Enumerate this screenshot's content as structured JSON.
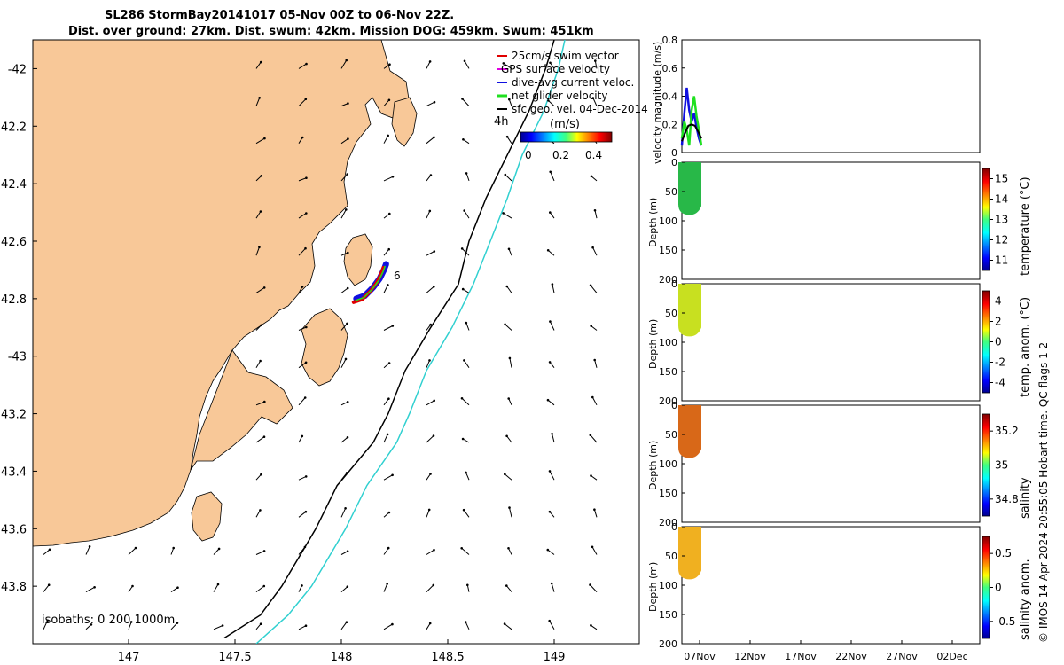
{
  "title": {
    "line1": "SL286 StormBay20141017 05-Nov 00Z to 06-Nov 22Z.",
    "line2": "Dist. over ground: 27km. Dist. swum: 42km. Mission DOG: 459km. Swum: 451km"
  },
  "colors": {
    "land": "#f8c898",
    "swim_vector": "#e00000",
    "gps_velocity": "#e000e0",
    "dive_avg": "#1010e0",
    "net_glider": "#20e020",
    "sfc_geo": "#000000",
    "isobath_200": "#000000",
    "isobath_1000": "#30d0d0"
  },
  "chart_data": [
    {
      "id": "map",
      "type": "scatter",
      "xlim": [
        146.55,
        149.4
      ],
      "ylim": [
        -44.0,
        -41.9
      ],
      "xticks": [
        147,
        147.5,
        148,
        148.5,
        149
      ],
      "xtick_labels": [
        "147",
        "147.5",
        "148",
        "148.5",
        "149"
      ],
      "yticks": [
        -42,
        -42.2,
        -42.4,
        -42.6,
        -42.8,
        -43,
        -43.2,
        -43.4,
        -43.6,
        -43.8
      ],
      "ytick_labels": [
        "-42",
        "42.2",
        "42.4",
        "42.6",
        "42.8",
        "-43",
        "43.2",
        "43.4",
        "43.6",
        "43.8"
      ],
      "legend": [
        {
          "label": "25cm/s swim vector",
          "color": "#e00000"
        },
        {
          "label": "GPS surface velocity",
          "color": "#e000e0"
        },
        {
          "label": "dive-avg current veloc.",
          "color": "#1010e0"
        },
        {
          "label": "net glider velocity",
          "color": "#20e020"
        },
        {
          "label": "sfc geo. vel. 04-Dec-2014",
          "color": "#000000"
        }
      ],
      "legend_position": "top-right",
      "colorbar_label": "(m/s)",
      "colorbar_ticks": [
        "0",
        "0.2",
        "0.4"
      ],
      "isobaths_label": "isobaths: 0   200  1000m",
      "annotations": [
        {
          "text": "4h",
          "lon": 148.78,
          "lat": -42.15
        },
        {
          "text": "6",
          "lon": 148.27,
          "lat": -42.73
        }
      ],
      "glider_track": [
        [
          148.07,
          -42.8
        ],
        [
          148.11,
          -42.79
        ],
        [
          148.15,
          -42.76
        ],
        [
          148.18,
          -42.73
        ],
        [
          148.2,
          -42.7
        ],
        [
          148.21,
          -42.68
        ]
      ],
      "isobath_200m": [
        [
          149.0,
          -41.9
        ],
        [
          148.96,
          -42.0
        ],
        [
          148.88,
          -42.15
        ],
        [
          148.78,
          -42.3
        ],
        [
          148.68,
          -42.45
        ],
        [
          148.6,
          -42.6
        ],
        [
          148.55,
          -42.75
        ],
        [
          148.42,
          -42.9
        ],
        [
          148.3,
          -43.05
        ],
        [
          148.22,
          -43.2
        ],
        [
          148.15,
          -43.3
        ],
        [
          147.98,
          -43.45
        ],
        [
          147.88,
          -43.6
        ],
        [
          147.8,
          -43.7
        ],
        [
          147.72,
          -43.8
        ],
        [
          147.62,
          -43.9
        ],
        [
          147.45,
          -43.98
        ]
      ],
      "isobath_1000m": [
        [
          149.05,
          -41.9
        ],
        [
          149.02,
          -42.0
        ],
        [
          148.95,
          -42.15
        ],
        [
          148.85,
          -42.3
        ],
        [
          148.78,
          -42.45
        ],
        [
          148.7,
          -42.6
        ],
        [
          148.62,
          -42.75
        ],
        [
          148.52,
          -42.9
        ],
        [
          148.4,
          -43.05
        ],
        [
          148.32,
          -43.2
        ],
        [
          148.26,
          -43.3
        ],
        [
          148.12,
          -43.45
        ],
        [
          148.02,
          -43.6
        ],
        [
          147.94,
          -43.7
        ],
        [
          147.86,
          -43.8
        ],
        [
          147.75,
          -43.9
        ],
        [
          147.6,
          -44.0
        ]
      ]
    },
    {
      "id": "velocity",
      "type": "line",
      "ylabel": "velocity magnitude (m/s)",
      "ylim": [
        0,
        0.8
      ],
      "yticks": [
        0,
        0.2,
        0.4,
        0.6,
        0.8
      ],
      "series": [
        {
          "name": "dive-avg current veloc.",
          "color": "#1010e0",
          "values": [
            0.05,
            0.28,
            0.46,
            0.3,
            0.22,
            0.28,
            0.18,
            0.1,
            0.05
          ]
        },
        {
          "name": "net glider velocity",
          "color": "#20e020",
          "values": [
            0.1,
            0.22,
            0.16,
            0.05,
            0.3,
            0.4,
            0.26,
            0.16,
            0.05
          ]
        },
        {
          "name": "sfc geo. vel.",
          "color": "#000000",
          "values": [
            0.08,
            0.14,
            0.19,
            0.2,
            0.19,
            0.15,
            0.1
          ]
        }
      ]
    },
    {
      "id": "temperature",
      "type": "heatmap",
      "ylabel": "Depth (m)",
      "yticks": [
        "0",
        "50",
        "100",
        "150",
        "200"
      ],
      "colorbar_label": "temperature (°C)",
      "colorbar_ticks": [
        "11",
        "12",
        "13",
        "14",
        "15"
      ],
      "max_depth": 90,
      "fill": "#28b848"
    },
    {
      "id": "temp_anom",
      "type": "heatmap",
      "ylabel": "Depth (m)",
      "yticks": [
        "0",
        "50",
        "100",
        "150",
        "200"
      ],
      "colorbar_label": "temp. anom. (°C)",
      "colorbar_ticks": [
        "-4",
        "-2",
        "0",
        "2",
        "4"
      ],
      "max_depth": 90,
      "fill": "#c8e020"
    },
    {
      "id": "salinity",
      "type": "heatmap",
      "ylabel": "Depth (m)",
      "yticks": [
        "0",
        "50",
        "100",
        "150",
        "200"
      ],
      "colorbar_label": "salinity",
      "colorbar_ticks": [
        "34.8",
        "35",
        "35.2"
      ],
      "max_depth": 90,
      "fill": "#d86818"
    },
    {
      "id": "sal_anom",
      "type": "heatmap",
      "ylabel": "Depth (m)",
      "yticks": [
        "0",
        "50",
        "100",
        "150",
        "200"
      ],
      "colorbar_label": "salinity anom.",
      "colorbar_ticks": [
        "-0.5",
        "0",
        "0.5"
      ],
      "max_depth": 90,
      "fill": "#f0b020",
      "xtick_labels": [
        "07Nov",
        "12Nov",
        "17Nov",
        "22Nov",
        "27Nov",
        "02Dec"
      ]
    }
  ],
  "footer": {
    "copyright": "© IMOS 14-Apr-2024 20:55:05 Hobart time. QC flags 1  2"
  }
}
